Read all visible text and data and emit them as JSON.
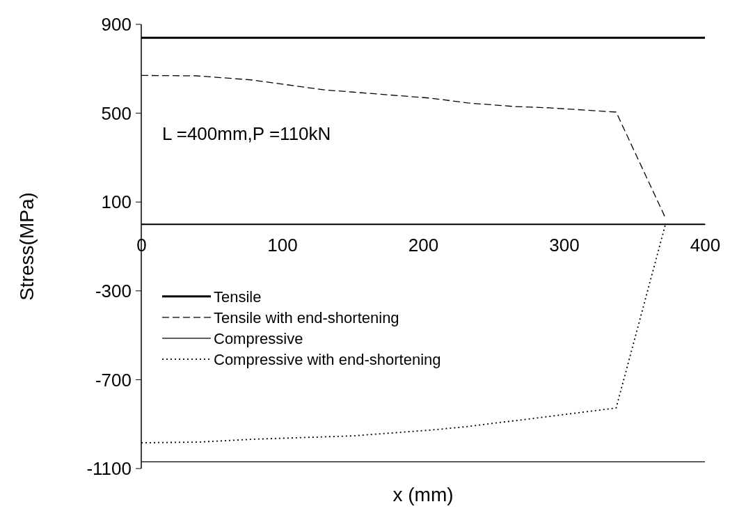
{
  "chart_data": {
    "type": "line",
    "xlabel": "x (mm)",
    "ylabel": "Stress(MPa)",
    "annotations": [
      "L =400mm,P =110kN"
    ],
    "xlim": [
      0,
      400
    ],
    "xticks": [
      0,
      100,
      200,
      300,
      400
    ],
    "ylim": [
      -1100,
      900
    ],
    "yticks": [
      -1100,
      -700,
      -300,
      100,
      500,
      900
    ],
    "grid": false,
    "legend": "bottom left",
    "marker": "none",
    "series": [
      {
        "name": "Tensile",
        "color": "#000000",
        "line_style": "solid",
        "x": [
          0,
          400
        ],
        "values": [
          840,
          840
        ]
      },
      {
        "name": "Tensile with end-shortening",
        "color": "#000000",
        "line_style": "dashed",
        "x": [
          0,
          40,
          78,
          130,
          205,
          232,
          265,
          290,
          337,
          372
        ],
        "values": [
          670,
          668,
          650,
          605,
          568,
          546,
          530,
          524,
          505,
          28
        ]
      },
      {
        "name": "Compressive",
        "color": "#000000",
        "line_style": "solid",
        "x": [
          0,
          400
        ],
        "values": [
          -1070,
          -1070
        ]
      },
      {
        "name": "Compressive with end-shortening",
        "color": "#000000",
        "line_style": "dotted",
        "x": [
          0,
          40,
          80,
          150,
          205,
          230,
          290,
          337,
          372
        ],
        "values": [
          -984,
          -981,
          -968,
          -953,
          -927,
          -912,
          -865,
          -827,
          0
        ]
      }
    ]
  }
}
